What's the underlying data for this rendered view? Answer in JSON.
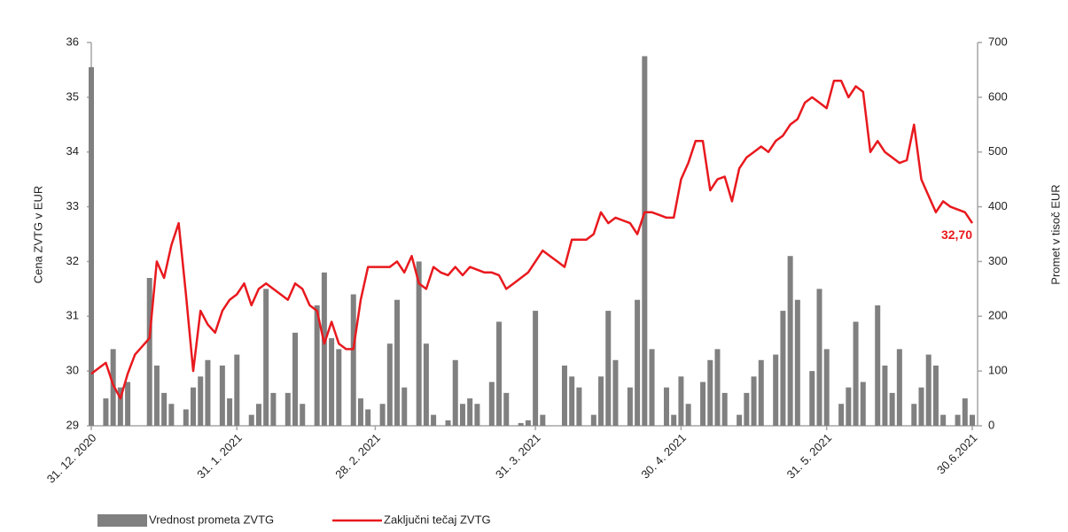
{
  "chart_data": {
    "type": "bar-line",
    "categories": [
      "31. 12. 2020",
      null,
      null,
      null,
      null,
      null,
      null,
      null,
      null,
      null,
      null,
      null,
      null,
      null,
      null,
      null,
      null,
      null,
      null,
      null,
      "31. 1. 2021",
      null,
      null,
      null,
      null,
      null,
      null,
      null,
      null,
      null,
      null,
      null,
      null,
      null,
      null,
      null,
      null,
      null,
      null,
      "28. 2. 2021",
      null,
      null,
      null,
      null,
      null,
      null,
      null,
      null,
      null,
      null,
      null,
      null,
      null,
      null,
      null,
      null,
      null,
      null,
      null,
      null,
      null,
      "31. 3. 2021",
      null,
      null,
      null,
      null,
      null,
      null,
      null,
      null,
      null,
      null,
      null,
      null,
      null,
      null,
      null,
      null,
      null,
      null,
      null,
      "30. 4. 2021",
      null,
      null,
      null,
      null,
      null,
      null,
      null,
      null,
      null,
      null,
      null,
      null,
      null,
      null,
      null,
      null,
      null,
      null,
      null,
      "31. 5. 2021",
      null,
      null,
      null,
      null,
      null,
      null,
      null,
      null,
      null,
      null,
      null,
      null,
      null,
      null,
      null,
      null,
      null,
      null,
      null,
      "30.6.2021"
    ],
    "series": [
      {
        "name": "Vrednost prometa ZVTG",
        "type": "bar",
        "axis": "y2",
        "color": "#808080",
        "values": [
          655,
          0,
          50,
          140,
          70,
          80,
          0,
          0,
          270,
          110,
          60,
          40,
          0,
          30,
          70,
          90,
          120,
          0,
          110,
          50,
          130,
          0,
          20,
          40,
          250,
          60,
          0,
          60,
          170,
          40,
          0,
          220,
          280,
          160,
          140,
          0,
          240,
          50,
          30,
          0,
          40,
          150,
          230,
          70,
          0,
          300,
          150,
          20,
          0,
          10,
          120,
          40,
          50,
          40,
          0,
          80,
          190,
          60,
          0,
          5,
          10,
          210,
          20,
          0,
          0,
          110,
          90,
          70,
          0,
          20,
          90,
          210,
          120,
          0,
          70,
          230,
          675,
          140,
          0,
          70,
          20,
          90,
          40,
          0,
          80,
          120,
          140,
          60,
          0,
          20,
          60,
          90,
          120,
          0,
          130,
          210,
          310,
          230,
          0,
          100,
          250,
          140,
          0,
          40,
          70,
          190,
          80,
          0,
          220,
          110,
          60,
          140,
          0,
          40,
          70,
          130,
          110,
          20,
          0,
          20,
          50,
          20
        ]
      },
      {
        "name": "Zaključni tečaj ZVTG",
        "type": "line",
        "color": "#e8191e",
        "values": [
          29.95,
          30.05,
          30.15,
          29.75,
          29.5,
          29.95,
          30.3,
          30.45,
          30.6,
          32.0,
          31.7,
          32.3,
          32.7,
          31.4,
          30.0,
          31.1,
          30.85,
          30.7,
          31.1,
          31.3,
          31.4,
          31.6,
          31.2,
          31.5,
          31.6,
          31.5,
          31.4,
          31.3,
          31.6,
          31.5,
          31.2,
          31.1,
          30.5,
          30.9,
          30.5,
          30.4,
          30.4,
          31.3,
          31.9,
          31.9,
          31.9,
          31.9,
          32.0,
          31.8,
          32.1,
          31.6,
          31.5,
          31.9,
          31.8,
          31.75,
          31.9,
          31.75,
          31.9,
          31.85,
          31.8,
          31.8,
          31.75,
          31.5,
          31.6,
          31.7,
          31.8,
          32.0,
          32.2,
          32.1,
          32.0,
          31.9,
          32.4,
          32.4,
          32.4,
          32.5,
          32.9,
          32.7,
          32.8,
          32.75,
          32.7,
          32.5,
          32.9,
          32.9,
          32.85,
          32.8,
          32.8,
          33.5,
          33.8,
          34.2,
          34.2,
          33.3,
          33.5,
          33.55,
          33.1,
          33.7,
          33.9,
          34.0,
          34.1,
          34.0,
          34.2,
          34.3,
          34.5,
          34.6,
          34.9,
          35.0,
          34.9,
          34.8,
          35.3,
          35.3,
          35.0,
          35.2,
          35.1,
          34.0,
          34.2,
          34.0,
          33.9,
          33.8,
          33.85,
          34.5,
          33.5,
          33.2,
          32.9,
          33.1,
          33.0,
          32.95,
          32.9,
          32.7
        ]
      }
    ],
    "ylabel": "Cena ZVTG v EUR",
    "y2label": "Promet v tisoč EUR",
    "ylim": [
      29,
      36
    ],
    "yticks": [
      29,
      30,
      31,
      32,
      33,
      34,
      35,
      36
    ],
    "y2lim": [
      0,
      700
    ],
    "y2ticks": [
      0,
      100,
      200,
      300,
      400,
      500,
      600,
      700
    ],
    "annotations": [
      {
        "text": "32,70"
      }
    ],
    "legend": "bottom"
  }
}
